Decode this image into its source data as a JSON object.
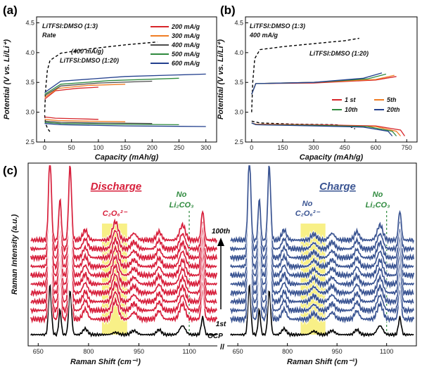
{
  "chart_data": [
    {
      "panel": "(a)",
      "type": "line",
      "header": [
        "LiTFSI:DMSO (1:3)",
        "Rate"
      ],
      "annotation": [
        "(400 mA/g)",
        "LiTFSI:DMSO (1:20)"
      ],
      "xlabel": "Capacity (mAh/g)",
      "ylabel": "Potential (V vs. Li/Li⁺)",
      "xlim": [
        -15,
        320
      ],
      "ylim": [
        2.5,
        4.6
      ],
      "xticks": [
        "0",
        "50",
        "100",
        "150",
        "200",
        "250",
        "300"
      ],
      "yticks": [
        "2.5",
        "3.0",
        "3.5",
        "4.0",
        "4.5"
      ],
      "legend_position": "top-right",
      "series": [
        {
          "name": "200 mA/g",
          "color": "#d7262a",
          "charge": [
            [
              0,
              3.22
            ],
            [
              20,
              3.36
            ],
            [
              60,
              3.4
            ],
            [
              100,
              3.42
            ]
          ],
          "discharge": [
            [
              0,
              2.92
            ],
            [
              20,
              2.9
            ],
            [
              60,
              2.89
            ],
            [
              100,
              2.88
            ]
          ]
        },
        {
          "name": "300 mA/g",
          "color": "#f07d24",
          "charge": [
            [
              0,
              3.25
            ],
            [
              25,
              3.4
            ],
            [
              80,
              3.45
            ],
            [
              150,
              3.47
            ]
          ],
          "discharge": [
            [
              0,
              2.88
            ],
            [
              25,
              2.86
            ],
            [
              80,
              2.85
            ],
            [
              150,
              2.84
            ]
          ]
        },
        {
          "name": "400 mA/g",
          "color": "#4c4c4c",
          "charge": [
            [
              0,
              3.28
            ],
            [
              30,
              3.44
            ],
            [
              100,
              3.49
            ],
            [
              200,
              3.52
            ]
          ],
          "discharge": [
            [
              0,
              2.85
            ],
            [
              30,
              2.83
            ],
            [
              100,
              2.82
            ],
            [
              200,
              2.81
            ]
          ]
        },
        {
          "name": "500 mA/g",
          "color": "#2f8a3e",
          "charge": [
            [
              0,
              3.3
            ],
            [
              30,
              3.47
            ],
            [
              120,
              3.53
            ],
            [
              250,
              3.57
            ]
          ],
          "discharge": [
            [
              0,
              2.83
            ],
            [
              30,
              2.81
            ],
            [
              120,
              2.8
            ],
            [
              250,
              2.79
            ]
          ]
        },
        {
          "name": "600 mA/g",
          "color": "#23408e",
          "charge": [
            [
              0,
              3.33
            ],
            [
              30,
              3.52
            ],
            [
              150,
              3.6
            ],
            [
              300,
              3.64
            ]
          ],
          "discharge": [
            [
              0,
              2.81
            ],
            [
              30,
              2.79
            ],
            [
              150,
              2.77
            ],
            [
              300,
              2.76
            ]
          ]
        }
      ],
      "reference": {
        "color": "#000000",
        "charge": [
          [
            0,
            3.0
          ],
          [
            2,
            3.4
          ],
          [
            5,
            3.7
          ],
          [
            10,
            3.87
          ],
          [
            30,
            3.99
          ],
          [
            80,
            4.06
          ],
          [
            150,
            4.13
          ],
          [
            200,
            4.17
          ],
          [
            210,
            4.18
          ]
        ],
        "discharge": [
          [
            0,
            2.95
          ],
          [
            2,
            2.8
          ],
          [
            6,
            2.72
          ],
          [
            12,
            2.65
          ]
        ]
      }
    },
    {
      "panel": "(b)",
      "type": "line",
      "header": [
        "LiTFSI:DMSO (1:3)",
        "400 mA/g"
      ],
      "annotation": [
        "LiTFSI:DMSO (1:20)"
      ],
      "xlabel": "Capacity (mAh/g)",
      "ylabel": "Potential (V vs. Li/Li⁺)",
      "xlim": [
        -30,
        800
      ],
      "ylim": [
        2.5,
        4.6
      ],
      "xticks": [
        "0",
        "150",
        "300",
        "450",
        "600",
        "750"
      ],
      "yticks": [
        "2.5",
        "3.0",
        "3.5",
        "4.0",
        "4.5"
      ],
      "legend_position": "bottom-right",
      "series": [
        {
          "name": "1 st",
          "color": "#d7262a",
          "charge": [
            [
              0,
              3.3
            ],
            [
              20,
              3.48
            ],
            [
              300,
              3.49
            ],
            [
              600,
              3.54
            ],
            [
              700,
              3.6
            ]
          ],
          "discharge": [
            [
              0,
              2.82
            ],
            [
              20,
              2.8
            ],
            [
              300,
              2.79
            ],
            [
              600,
              2.77
            ],
            [
              720,
              2.7
            ],
            [
              740,
              2.6
            ]
          ]
        },
        {
          "name": "5th",
          "color": "#f07d24",
          "charge": [
            [
              0,
              3.3
            ],
            [
              20,
              3.48
            ],
            [
              300,
              3.5
            ],
            [
              600,
              3.55
            ],
            [
              690,
              3.62
            ]
          ],
          "discharge": [
            [
              0,
              2.82
            ],
            [
              20,
              2.8
            ],
            [
              300,
              2.78
            ],
            [
              600,
              2.76
            ],
            [
              700,
              2.68
            ],
            [
              720,
              2.6
            ]
          ]
        },
        {
          "name": "10th",
          "color": "#2f8a3e",
          "charge": [
            [
              0,
              3.3
            ],
            [
              20,
              3.48
            ],
            [
              300,
              3.5
            ],
            [
              560,
              3.56
            ],
            [
              650,
              3.64
            ]
          ],
          "discharge": [
            [
              0,
              2.82
            ],
            [
              20,
              2.79
            ],
            [
              300,
              2.78
            ],
            [
              560,
              2.76
            ],
            [
              680,
              2.68
            ],
            [
              700,
              2.6
            ]
          ]
        },
        {
          "name": "20th",
          "color": "#23408e",
          "charge": [
            [
              0,
              3.3
            ],
            [
              20,
              3.48
            ],
            [
              300,
              3.5
            ],
            [
              540,
              3.57
            ],
            [
              630,
              3.66
            ]
          ],
          "discharge": [
            [
              0,
              2.82
            ],
            [
              20,
              2.79
            ],
            [
              300,
              2.77
            ],
            [
              540,
              2.75
            ],
            [
              660,
              2.68
            ],
            [
              680,
              2.6
            ]
          ]
        }
      ],
      "reference": {
        "color": "#000000",
        "charge": [
          [
            0,
            3.0
          ],
          [
            5,
            3.5
          ],
          [
            15,
            3.9
          ],
          [
            40,
            4.05
          ],
          [
            150,
            4.1
          ],
          [
            300,
            4.15
          ],
          [
            450,
            4.2
          ],
          [
            520,
            4.24
          ]
        ],
        "discharge": [
          [
            0,
            2.85
          ],
          [
            40,
            2.82
          ],
          [
            200,
            2.8
          ],
          [
            400,
            2.79
          ],
          [
            470,
            2.77
          ],
          [
            500,
            2.72
          ]
        ]
      }
    },
    {
      "panel": "(c)",
      "type": "line",
      "xlabel": "Raman Shift (cm⁻¹)",
      "ylabel": "Raman Intensity (a.u.)",
      "xlim": [
        620,
        1190
      ],
      "xticks": [
        "650",
        "800",
        "950",
        "1100"
      ],
      "left_title": "Discharge",
      "right_title": "Charge",
      "left_color": "#d71f3b",
      "right_color": "#3a5492",
      "left_labels": {
        "species": "C₂O₆²⁻",
        "no_label": "No",
        "no_species": "Li₂CO₃"
      },
      "right_labels": {
        "no1": "No",
        "species": "C₂O₆²⁻",
        "no2": "No",
        "no_species": "Li₂CO₃"
      },
      "highlight_range": [
        840,
        915
      ],
      "highlight_color": "#f7ee7a",
      "marker_x": 1100,
      "cycle_top": "100th",
      "cycle_bottom": "1st",
      "ocp_label": "OCP",
      "traces_per_side": 10,
      "peak_positions": [
        685,
        715,
        745,
        880,
        1080,
        1140
      ]
    }
  ]
}
